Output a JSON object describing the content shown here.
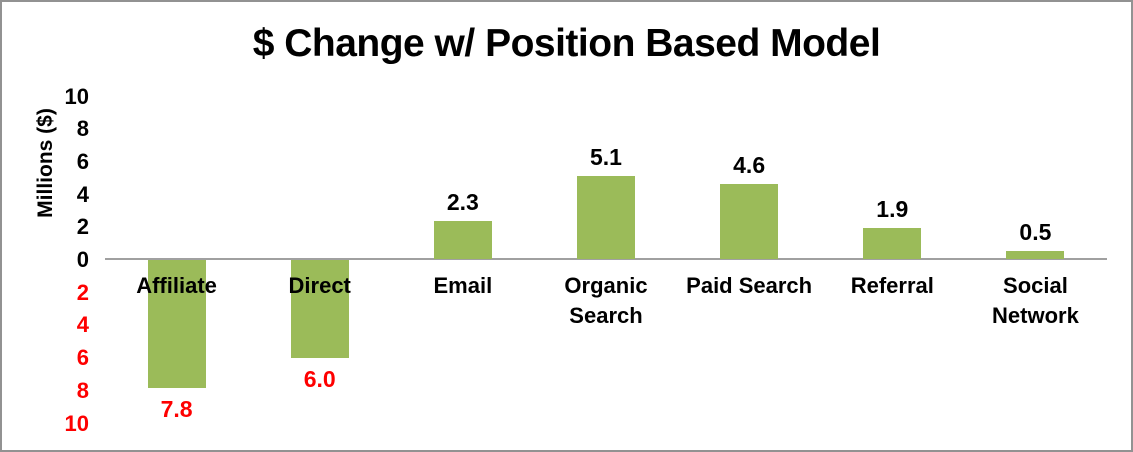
{
  "window": {
    "background": "#ffffff",
    "border_color": "#929292"
  },
  "colors": {
    "bar": "#9bbb59",
    "positive_value": "#000000",
    "negative_value": "#fe0000",
    "axis_line": "#a0a0a0",
    "title_text": "#000000"
  },
  "chart_data": {
    "type": "bar",
    "title": "$ Change w/ Position Based Model",
    "xlabel": "",
    "ylabel": "Millions ($)",
    "categories": [
      "Affiliate",
      "Direct",
      "Email",
      "Organic Search",
      "Paid Search",
      "Referral",
      "Social Network"
    ],
    "values": [
      -7.8,
      -6.0,
      2.3,
      5.1,
      4.6,
      1.9,
      0.5
    ],
    "value_label_decimals": 1,
    "ylim": [
      -10,
      10
    ],
    "ytick_step": 2,
    "ytick_style": "absolute-value, negatives shown in red",
    "grid": "off",
    "legend": "none",
    "layout_hints": {
      "two_line_labels": [
        "Organic Search",
        "Social Network"
      ],
      "category_labels_below_zero_line": true,
      "negative_bars_hang_below_axis": true
    }
  }
}
